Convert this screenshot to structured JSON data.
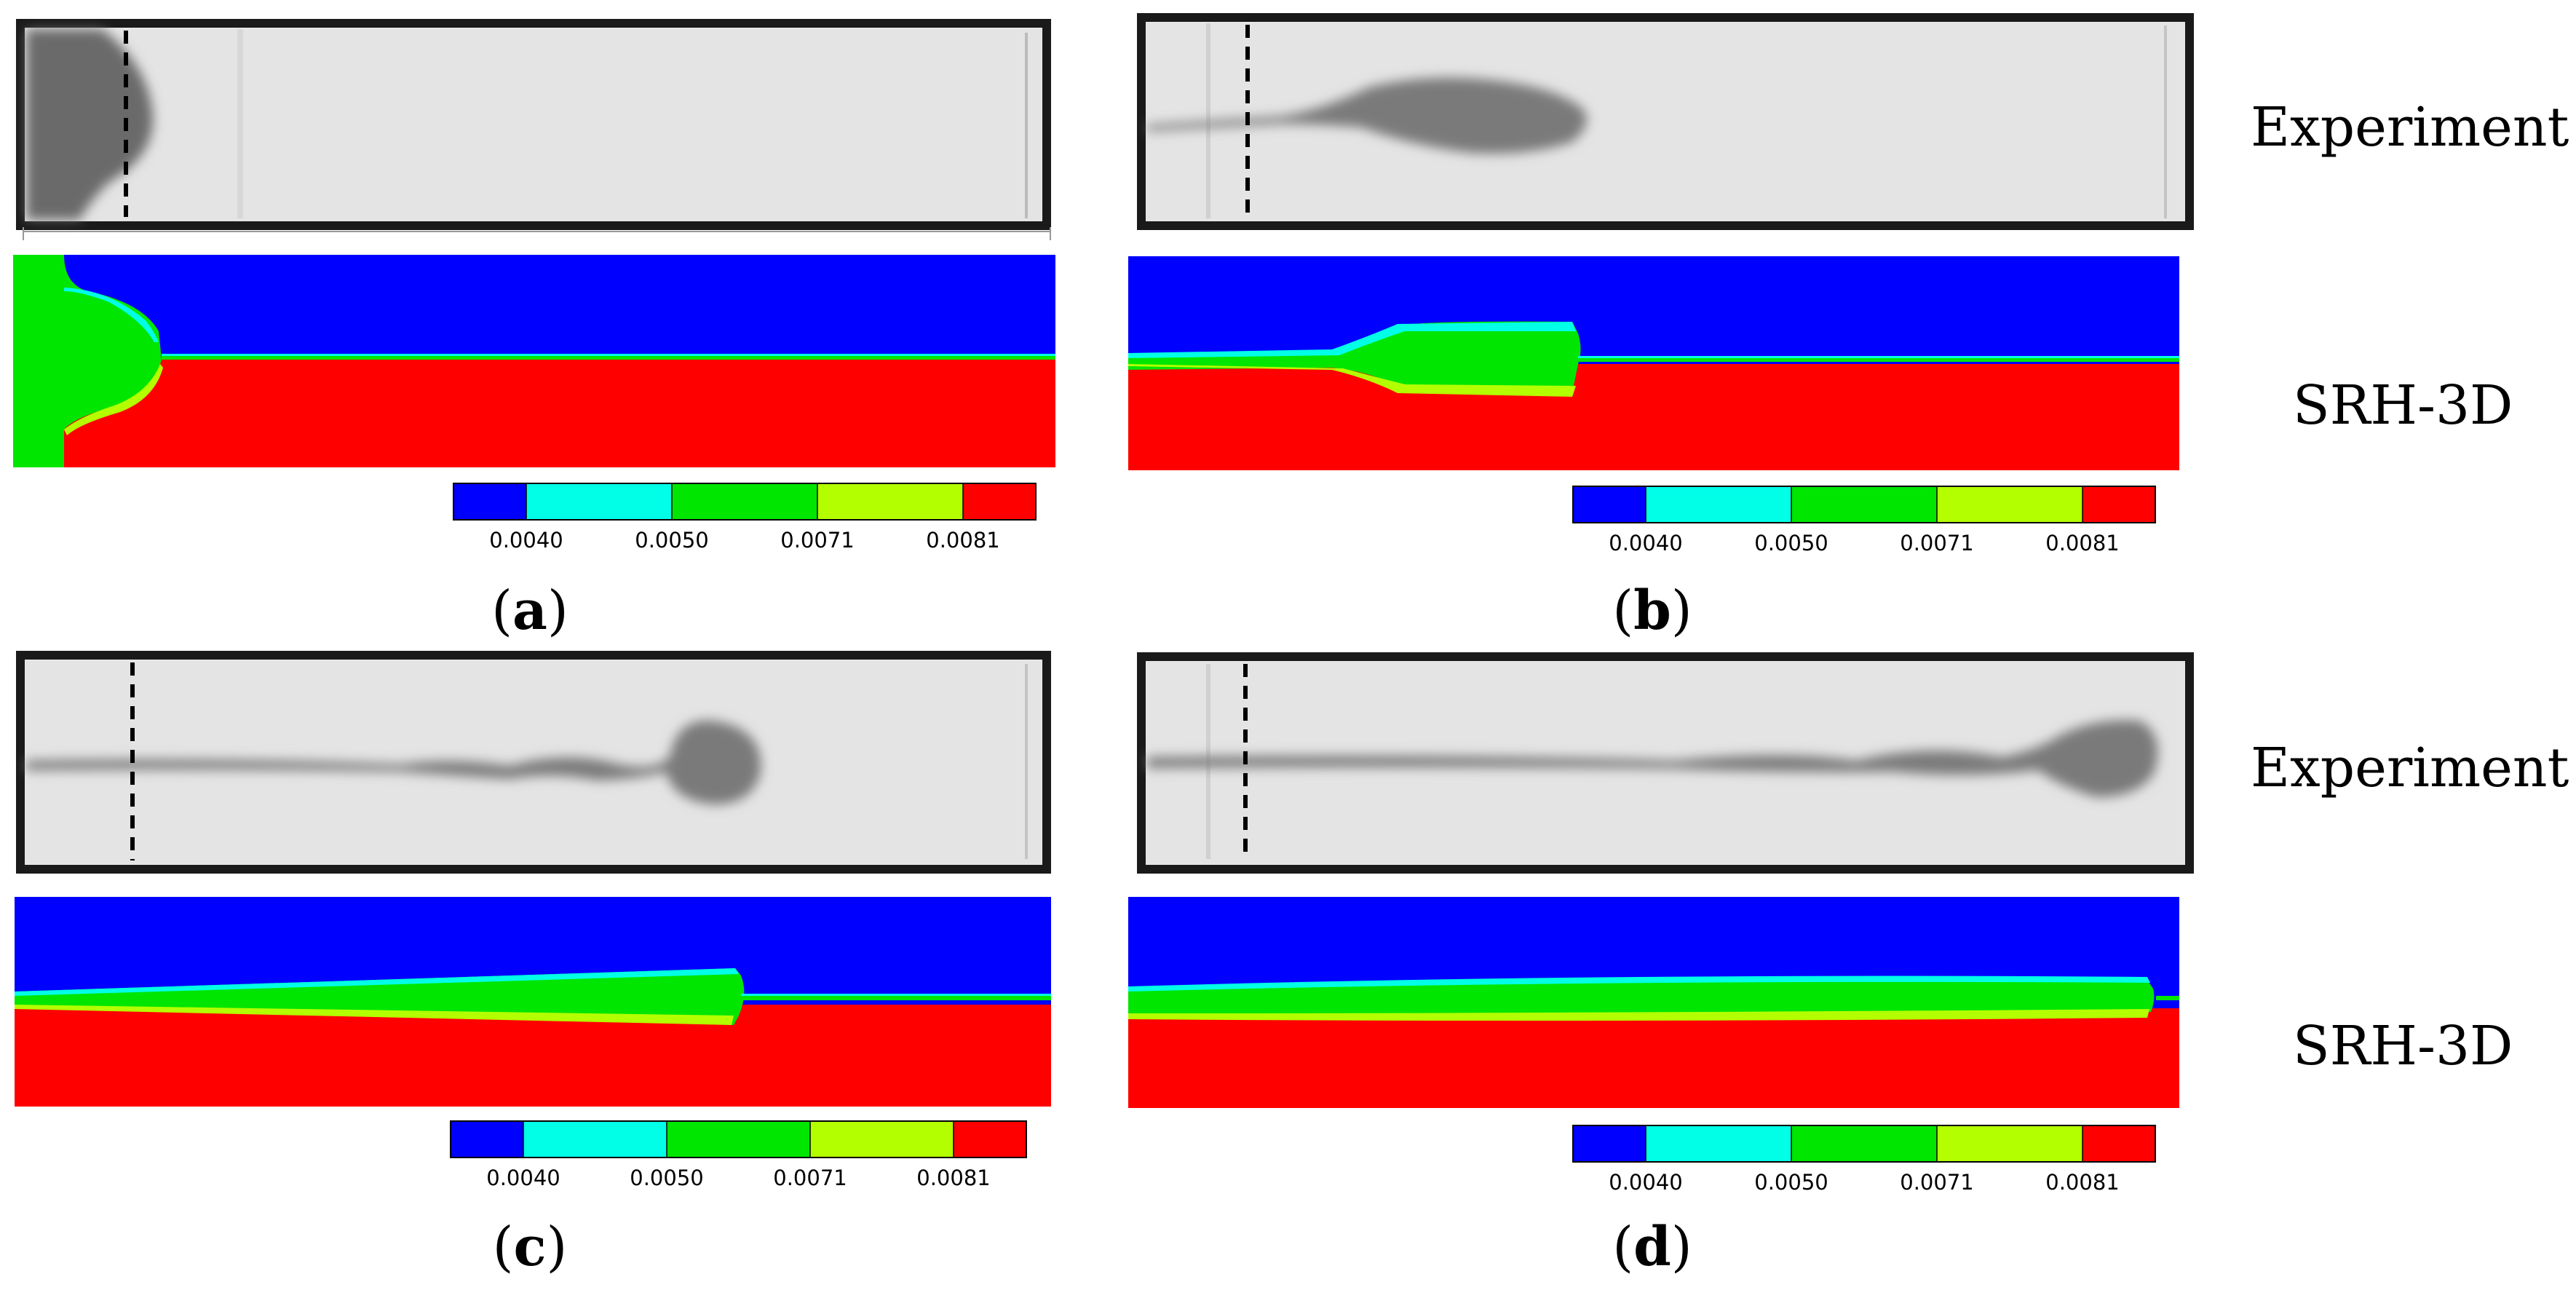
{
  "row_labels": {
    "experiment": "Experiment",
    "model": "SRH-3D"
  },
  "colorbar": {
    "colors": [
      "#0000ff",
      "#00ffe6",
      "#00e600",
      "#b3ff00",
      "#ff0000"
    ],
    "tick_labels": [
      "0.0040",
      "0.0050",
      "0.0071",
      "0.0081"
    ]
  },
  "panels": [
    {
      "id": "a",
      "open": "(",
      "letter": "a",
      "close": ")"
    },
    {
      "id": "b",
      "open": "(",
      "letter": "b",
      "close": ")"
    },
    {
      "id": "c",
      "open": "(",
      "letter": "c",
      "close": ")"
    },
    {
      "id": "d",
      "open": "(",
      "letter": "d",
      "close": ")"
    }
  ]
}
